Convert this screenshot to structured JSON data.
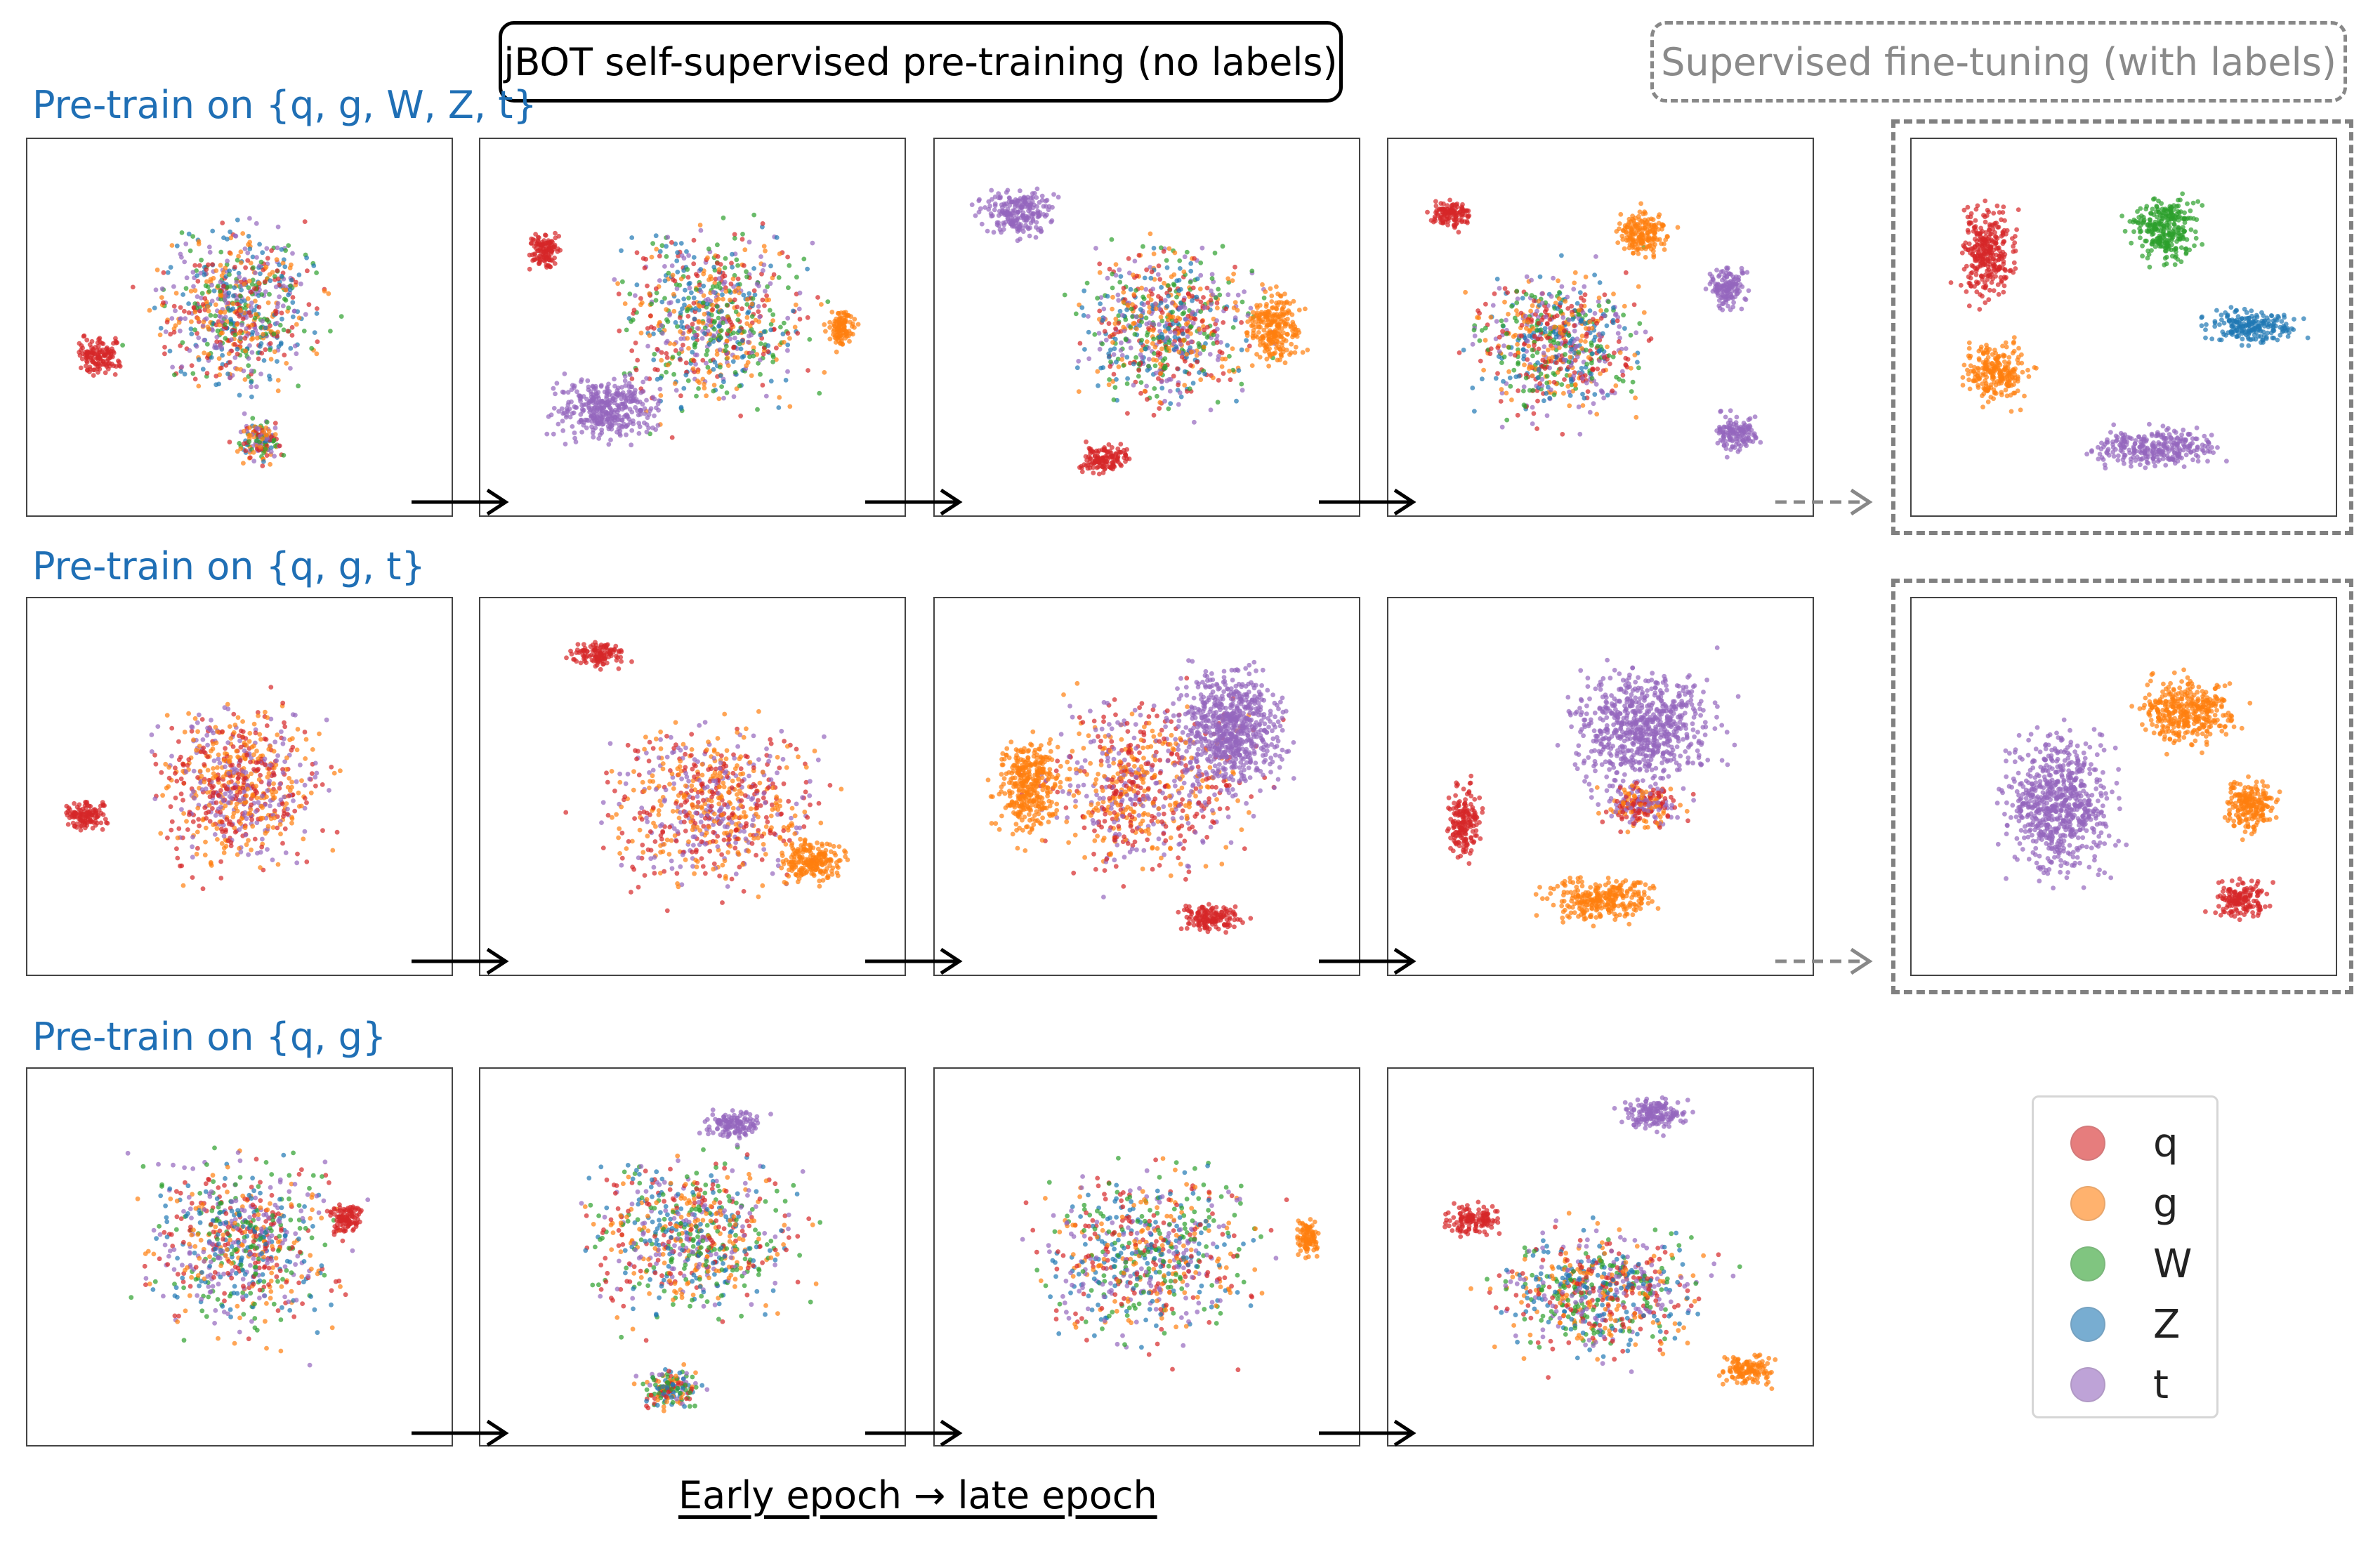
{
  "header": {
    "pretraining_title": "jBOT self-supervised pre-training (no labels)",
    "finetuning_title": "Supervised fine-tuning (with labels)"
  },
  "rows": [
    {
      "label": "Pre-train on {q, g, W, Z, t}",
      "classes": [
        "q",
        "g",
        "W",
        "Z",
        "t"
      ],
      "has_finetuned": true
    },
    {
      "label": "Pre-train on {q, g, t}",
      "classes": [
        "q",
        "g",
        "t"
      ],
      "has_finetuned": true
    },
    {
      "label": "Pre-train on {q, g}",
      "classes": [
        "q",
        "g",
        "W",
        "Z",
        "t"
      ],
      "has_finetuned": false
    }
  ],
  "legend": {
    "items": [
      {
        "label": "q",
        "color": "#d62728"
      },
      {
        "label": "g",
        "color": "#ff7f0e"
      },
      {
        "label": "W",
        "color": "#2ca02c"
      },
      {
        "label": "Z",
        "color": "#1f77b4"
      },
      {
        "label": "t",
        "color": "#9467bd"
      }
    ]
  },
  "caption": "Early epoch → late epoch"
}
